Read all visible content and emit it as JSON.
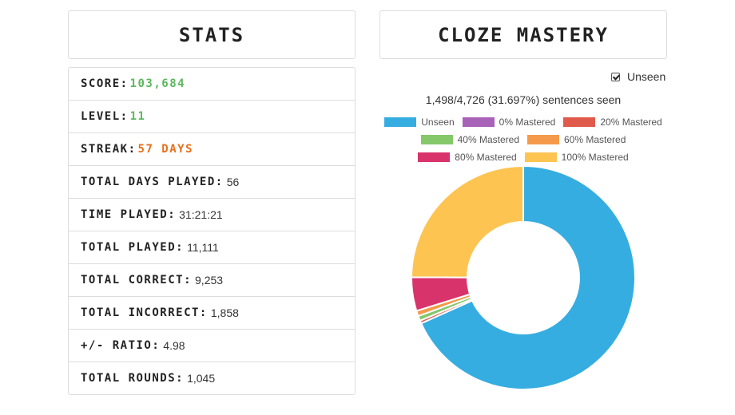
{
  "stats_panel": {
    "title": "STATS",
    "rows": [
      {
        "label": "SCORE:",
        "value": "103,684"
      },
      {
        "label": "LEVEL:",
        "value": "11"
      },
      {
        "label": "STREAK:",
        "value": "57 DAYS"
      },
      {
        "label": "TOTAL DAYS PLAYED:",
        "value": "56"
      },
      {
        "label": "TIME PLAYED:",
        "value": "31:21:21"
      },
      {
        "label": "TOTAL PLAYED:",
        "value": "11,111"
      },
      {
        "label": "TOTAL CORRECT:",
        "value": "9,253"
      },
      {
        "label": "TOTAL INCORRECT:",
        "value": "1,858"
      },
      {
        "label": "+/- RATIO:",
        "value": "4.98"
      },
      {
        "label": "TOTAL ROUNDS:",
        "value": "1,045"
      }
    ],
    "colors": {
      "score": "#5cb85c",
      "level": "#5cb85c",
      "streak": "#e8701a"
    }
  },
  "cloze_panel": {
    "title": "CLOZE MASTERY",
    "unseen_checkbox": {
      "label": "Unseen",
      "checked": true
    },
    "seen_text": "1,498/4,726 (31.697%) sentences seen"
  },
  "chart_data": {
    "type": "pie",
    "donut": true,
    "legend_position": "top",
    "labels": [
      "Unseen",
      "0% Mastered",
      "20% Mastered",
      "40% Mastered",
      "60% Mastered",
      "80% Mastered",
      "100% Mastered"
    ],
    "colors": [
      "#36ade1",
      "#a862b8",
      "#e05a4b",
      "#84c86a",
      "#f59a4a",
      "#d9336c",
      "#fdc451"
    ],
    "values": [
      3228,
      0,
      20,
      33,
      37,
      230,
      1178
    ]
  }
}
